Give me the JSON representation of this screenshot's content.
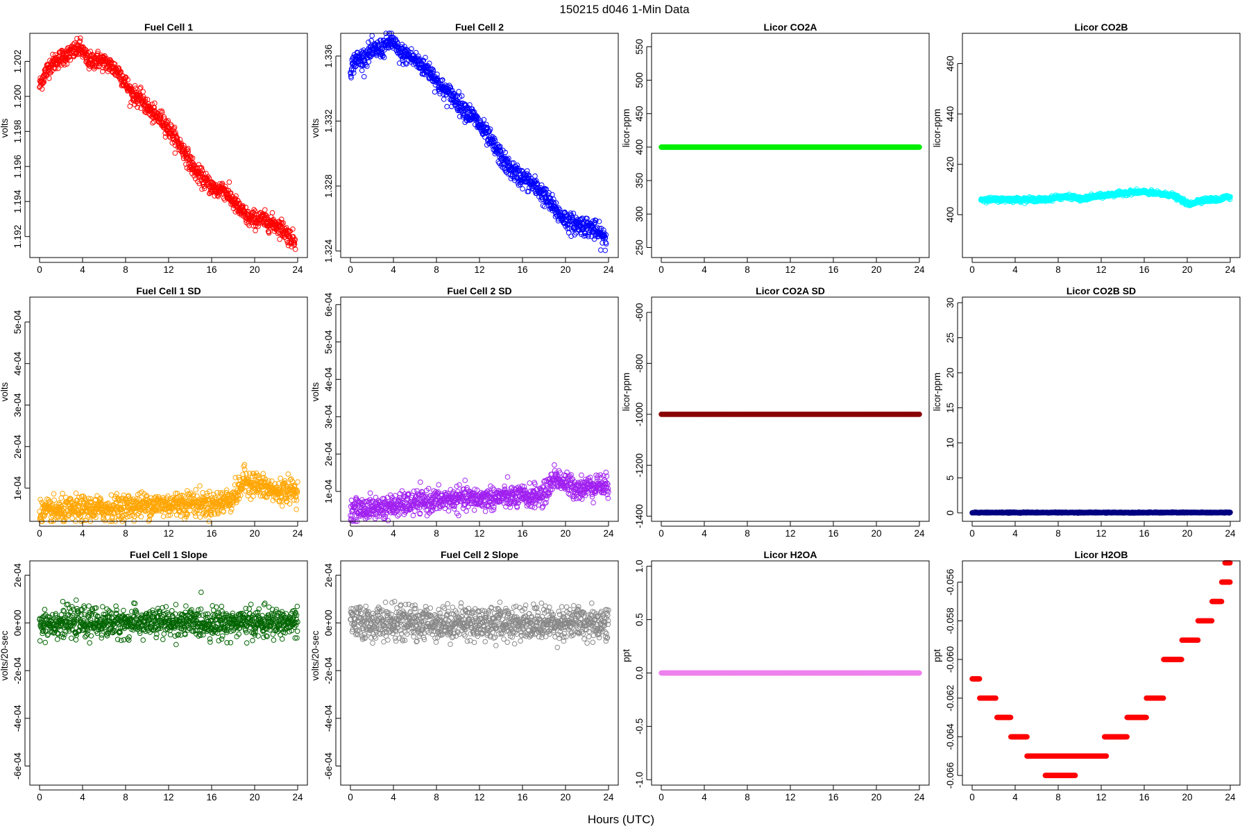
{
  "figure": {
    "title": "150215    d046    1-Min Data",
    "xlabel": "Hours (UTC)"
  },
  "chart_data": [
    {
      "type": "scatter",
      "title": "Fuel Cell 1",
      "ylabel": "volts",
      "color": "#ff0000",
      "xlim": [
        0,
        24
      ],
      "ylim": [
        1.1908,
        1.2036
      ],
      "xticks": [
        0,
        4,
        8,
        12,
        16,
        20,
        24
      ],
      "xtick_labels": [
        "0",
        "4",
        "8",
        "12",
        "16",
        "20",
        "24"
      ],
      "yticks": [
        1.192,
        1.194,
        1.196,
        1.198,
        1.2,
        1.202
      ],
      "ytick_labels": [
        "1.192",
        "1.194",
        "1.196",
        "1.198",
        "1.200",
        "1.202"
      ],
      "x": [
        0,
        0.5,
        1,
        2,
        3,
        3.8,
        4.5,
        5.5,
        6.5,
        7.5,
        8.5,
        9.5,
        10.5,
        11.5,
        12.5,
        13.5,
        14.5,
        15.5,
        16.5,
        17,
        17.5,
        18.5,
        19.5,
        20.5,
        21.5,
        22.5,
        23.2,
        23.8
      ],
      "y": [
        1.2006,
        1.2013,
        1.2018,
        1.2022,
        1.2025,
        1.2028,
        1.202,
        1.2021,
        1.2018,
        1.2013,
        1.2002,
        1.1998,
        1.199,
        1.1986,
        1.1977,
        1.1968,
        1.1957,
        1.1951,
        1.1946,
        1.1948,
        1.1944,
        1.1936,
        1.193,
        1.193,
        1.1928,
        1.1925,
        1.192,
        1.1917
      ],
      "jitter": 0.00025
    },
    {
      "type": "scatter",
      "title": "Fuel Cell 2",
      "ylabel": "volts",
      "color": "#0000ff",
      "xlim": [
        0,
        24
      ],
      "ylim": [
        1.3236,
        1.3374
      ],
      "xticks": [
        0,
        4,
        8,
        12,
        16,
        20,
        24
      ],
      "xtick_labels": [
        "0",
        "4",
        "8",
        "12",
        "16",
        "20",
        "24"
      ],
      "yticks": [
        1.324,
        1.328,
        1.332,
        1.336
      ],
      "ytick_labels": [
        "1.324",
        "1.328",
        "1.332",
        "1.336"
      ],
      "x": [
        0,
        0.5,
        1,
        2,
        3,
        3.8,
        4.5,
        5.5,
        6.5,
        7.5,
        8.5,
        9.5,
        10.5,
        11.5,
        12.5,
        13.5,
        14.5,
        15.5,
        16.5,
        17.5,
        18.5,
        19.5,
        20.5,
        21.5,
        22.5,
        23.2,
        23.8
      ],
      "y": [
        1.3352,
        1.3358,
        1.3358,
        1.3363,
        1.3365,
        1.337,
        1.3362,
        1.336,
        1.3355,
        1.335,
        1.334,
        1.3335,
        1.3328,
        1.3322,
        1.3313,
        1.3303,
        1.3293,
        1.3287,
        1.3283,
        1.3278,
        1.327,
        1.3262,
        1.3257,
        1.3256,
        1.3254,
        1.325,
        1.3247
      ],
      "jitter": 0.0003
    },
    {
      "type": "scatter",
      "title": "Licor CO2A",
      "ylabel": "licor-ppm",
      "color": "#00ee00",
      "xlim": [
        0,
        24
      ],
      "ylim": [
        235,
        570
      ],
      "xticks": [
        0,
        4,
        8,
        12,
        16,
        20,
        24
      ],
      "xtick_labels": [
        "0",
        "4",
        "8",
        "12",
        "16",
        "20",
        "24"
      ],
      "yticks": [
        250,
        300,
        350,
        400,
        450,
        500,
        550
      ],
      "ytick_labels": [
        "250",
        "300",
        "350",
        "400",
        "450",
        "500",
        "550"
      ],
      "x": [
        0,
        24
      ],
      "y": [
        400,
        400
      ],
      "jitter": 0
    },
    {
      "type": "scatter",
      "title": "Licor CO2B",
      "ylabel": "licor-ppm",
      "color": "#00ffff",
      "xlim": [
        0,
        24
      ],
      "ylim": [
        383,
        472
      ],
      "xticks": [
        0,
        4,
        8,
        12,
        16,
        20,
        24
      ],
      "xtick_labels": [
        "0",
        "4",
        "8",
        "12",
        "16",
        "20",
        "24"
      ],
      "yticks": [
        400,
        420,
        440,
        460
      ],
      "ytick_labels": [
        "400",
        "420",
        "440",
        "460"
      ],
      "x": [
        0.8,
        1,
        2,
        3,
        4,
        5,
        6,
        7,
        7.8,
        8.5,
        9.5,
        10.2,
        11,
        12,
        13,
        14,
        15,
        16,
        17,
        18,
        18.5,
        19.8,
        20.2,
        21,
        22,
        23,
        23.5,
        24
      ],
      "y": [
        406,
        406,
        406,
        406,
        406,
        406,
        406,
        406,
        407,
        407,
        407,
        406,
        407,
        407.5,
        408,
        408.5,
        409,
        409,
        408.5,
        408,
        408,
        405,
        404,
        405.5,
        406,
        406,
        407,
        407
      ],
      "jitter": 0.4
    },
    {
      "type": "scatter",
      "title": "Fuel Cell 1 SD",
      "ylabel": "volts",
      "color": "#ffa500",
      "xlim": [
        0,
        24
      ],
      "ylim": [
        2e-05,
        0.00056
      ],
      "xticks": [
        0,
        4,
        8,
        12,
        16,
        20,
        24
      ],
      "xtick_labels": [
        "0",
        "4",
        "8",
        "12",
        "16",
        "20",
        "24"
      ],
      "yticks": [
        0.0001,
        0.0002,
        0.0003,
        0.0004,
        0.0005
      ],
      "ytick_labels": [
        "1e-04",
        "2e-04",
        "3e-04",
        "4e-04",
        "5e-04"
      ],
      "x": [
        0,
        2,
        4,
        6,
        8,
        10,
        12,
        14,
        16,
        17.5,
        18.5,
        19,
        20,
        21,
        22,
        23,
        24
      ],
      "y": [
        4e-05,
        4.5e-05,
        5e-05,
        5e-05,
        5.5e-05,
        6e-05,
        6e-05,
        6.5e-05,
        6e-05,
        7e-05,
        9e-05,
        0.00012,
        0.00011,
        0.0001,
        9e-05,
        9.5e-05,
        9e-05
      ],
      "jitter": 1.5e-05
    },
    {
      "type": "scatter",
      "title": "Fuel Cell 2 SD",
      "ylabel": "volts",
      "color": "#a020f0",
      "xlim": [
        0,
        24
      ],
      "ylim": [
        2e-05,
        0.00062
      ],
      "xticks": [
        0,
        4,
        8,
        12,
        16,
        20,
        24
      ],
      "xtick_labels": [
        "0",
        "4",
        "8",
        "12",
        "16",
        "20",
        "24"
      ],
      "yticks": [
        0.0001,
        0.0002,
        0.0003,
        0.0004,
        0.0005,
        0.0006
      ],
      "ytick_labels": [
        "1e-04",
        "2e-04",
        "3e-04",
        "4e-04",
        "5e-04",
        "6e-04"
      ],
      "x": [
        0,
        2,
        4,
        6,
        8,
        10,
        12,
        14,
        16,
        18,
        19,
        20,
        21,
        22,
        23,
        24
      ],
      "y": [
        5e-05,
        5.5e-05,
        6e-05,
        7e-05,
        7.5e-05,
        8e-05,
        8e-05,
        8.5e-05,
        8.5e-05,
        9e-05,
        0.00014,
        0.00012,
        0.00011,
        0.00011,
        0.00012,
        0.00011
      ],
      "jitter": 1.5e-05
    },
    {
      "type": "scatter",
      "title": "Licor CO2A SD",
      "ylabel": "licor-ppm",
      "color": "#8b0000",
      "xlim": [
        0,
        24
      ],
      "ylim": [
        -1420,
        -540
      ],
      "xticks": [
        0,
        4,
        8,
        12,
        16,
        20,
        24
      ],
      "xtick_labels": [
        "0",
        "4",
        "8",
        "12",
        "16",
        "20",
        "24"
      ],
      "yticks": [
        -1400,
        -1200,
        -1000,
        -800,
        -600
      ],
      "ytick_labels": [
        "-1400",
        "-1200",
        "-1000",
        "-800",
        "-600"
      ],
      "x": [
        0,
        24
      ],
      "y": [
        -1000,
        -1000
      ],
      "jitter": 0
    },
    {
      "type": "scatter",
      "title": "Licor CO2B SD",
      "ylabel": "licor-ppm",
      "color": "#000080",
      "xlim": [
        0,
        24
      ],
      "ylim": [
        -1.2,
        30.8
      ],
      "xticks": [
        0,
        4,
        8,
        12,
        16,
        20,
        24
      ],
      "xtick_labels": [
        "0",
        "4",
        "8",
        "12",
        "16",
        "20",
        "24"
      ],
      "yticks": [
        0,
        5,
        10,
        15,
        20,
        25,
        30
      ],
      "ytick_labels": [
        "0",
        "5",
        "10",
        "15",
        "20",
        "25",
        "30"
      ],
      "x": [
        0,
        24
      ],
      "y": [
        0.05,
        0.05
      ],
      "jitter": 0.03
    },
    {
      "type": "scatter",
      "title": "Fuel Cell 1 Slope",
      "ylabel": "volts/20-sec",
      "color": "#006400",
      "xlim": [
        0,
        24
      ],
      "ylim": [
        -0.00068,
        0.00026
      ],
      "xticks": [
        0,
        4,
        8,
        12,
        16,
        20,
        24
      ],
      "xtick_labels": [
        "0",
        "4",
        "8",
        "12",
        "16",
        "20",
        "24"
      ],
      "yticks": [
        -0.0006,
        -0.0004,
        -0.0002,
        0,
        0.0002
      ],
      "ytick_labels": [
        "-6e-04",
        "-4e-04",
        "-2e-04",
        "0e+00",
        "2e-04"
      ],
      "x": [
        0,
        24
      ],
      "y": [
        0,
        0
      ],
      "jitter": 3e-05
    },
    {
      "type": "scatter",
      "title": "Fuel Cell 2 Slope",
      "ylabel": "volts/20-sec",
      "color": "#888888",
      "xlim": [
        0,
        24
      ],
      "ylim": [
        -0.00068,
        0.00026
      ],
      "xticks": [
        0,
        4,
        8,
        12,
        16,
        20,
        24
      ],
      "xtick_labels": [
        "0",
        "4",
        "8",
        "12",
        "16",
        "20",
        "24"
      ],
      "yticks": [
        -0.0006,
        -0.0004,
        -0.0002,
        0,
        0.0002
      ],
      "ytick_labels": [
        "-6e-04",
        "-4e-04",
        "-2e-04",
        "0e+00",
        "2e-04"
      ],
      "x": [
        0,
        24
      ],
      "y": [
        0,
        0
      ],
      "jitter": 3.5e-05
    },
    {
      "type": "scatter",
      "title": "Licor H2OA",
      "ylabel": "ppt",
      "color": "#ee82ee",
      "xlim": [
        0,
        24
      ],
      "ylim": [
        -1.05,
        1.05
      ],
      "xticks": [
        0,
        4,
        8,
        12,
        16,
        20,
        24
      ],
      "xtick_labels": [
        "0",
        "4",
        "8",
        "12",
        "16",
        "20",
        "24"
      ],
      "yticks": [
        -1,
        -0.5,
        0,
        0.5,
        1
      ],
      "ytick_labels": [
        "-1.0",
        "-0.5",
        "0.0",
        "0.5",
        "1.0"
      ],
      "x": [
        0,
        24
      ],
      "y": [
        0,
        0
      ],
      "jitter": 0
    },
    {
      "type": "scatter",
      "title": "Licor H2OB",
      "ylabel": "ppt",
      "color": "#ff0000",
      "xlim": [
        0,
        24
      ],
      "ylim": [
        -0.0665,
        -0.0549
      ],
      "xticks": [
        0,
        4,
        8,
        12,
        16,
        20,
        24
      ],
      "xtick_labels": [
        "0",
        "4",
        "8",
        "12",
        "16",
        "20",
        "24"
      ],
      "yticks": [
        -0.066,
        -0.064,
        -0.062,
        -0.06,
        -0.058,
        -0.056
      ],
      "ytick_labels": [
        "-0.066",
        "-0.064",
        "-0.062",
        "-0.060",
        "-0.058",
        "-0.056"
      ],
      "segments": [
        {
          "x0": 0,
          "x1": 0.7,
          "y": -0.061
        },
        {
          "x0": 0.7,
          "x1": 2.2,
          "y": -0.062
        },
        {
          "x0": 2.3,
          "x1": 3.6,
          "y": -0.063
        },
        {
          "x0": 3.6,
          "x1": 5.1,
          "y": -0.064
        },
        {
          "x0": 5.1,
          "x1": 12.5,
          "y": -0.065
        },
        {
          "x0": 6.8,
          "x1": 9.6,
          "y": -0.066
        },
        {
          "x0": 12.3,
          "x1": 14.4,
          "y": -0.064
        },
        {
          "x0": 14.4,
          "x1": 16.2,
          "y": -0.063
        },
        {
          "x0": 16.2,
          "x1": 17.8,
          "y": -0.062
        },
        {
          "x0": 17.8,
          "x1": 19.5,
          "y": -0.06
        },
        {
          "x0": 19.5,
          "x1": 21,
          "y": -0.059
        },
        {
          "x0": 21,
          "x1": 22.3,
          "y": -0.058
        },
        {
          "x0": 22.3,
          "x1": 23.2,
          "y": -0.057
        },
        {
          "x0": 23.2,
          "x1": 24,
          "y": -0.056
        },
        {
          "x0": 23.5,
          "x1": 24,
          "y": -0.055
        }
      ]
    }
  ]
}
